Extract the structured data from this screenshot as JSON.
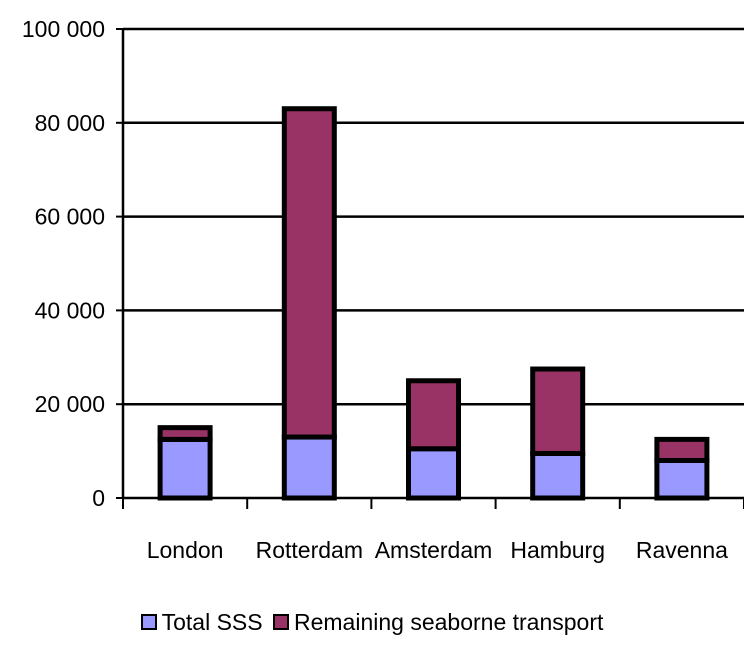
{
  "chart_data": {
    "type": "bar",
    "stacked": true,
    "categories": [
      "London",
      "Rotterdam",
      "Amsterdam",
      "Hamburg",
      "Ravenna"
    ],
    "series": [
      {
        "name": "Total SSS",
        "color": "#9999ff",
        "values": [
          12500,
          13000,
          10500,
          9500,
          8000
        ]
      },
      {
        "name": "Remaining seaborne transport",
        "color": "#993366",
        "values": [
          2500,
          70000,
          14500,
          18000,
          4500
        ]
      }
    ],
    "ylim": [
      0,
      100000
    ],
    "yticks": [
      0,
      20000,
      40000,
      60000,
      80000,
      100000
    ],
    "ytick_labels": [
      "0",
      "20 000",
      "40 000",
      "60 000",
      "80 000",
      "100 000"
    ],
    "grid": true,
    "legend_position": "bottom",
    "title": "",
    "xlabel": "",
    "ylabel": ""
  }
}
